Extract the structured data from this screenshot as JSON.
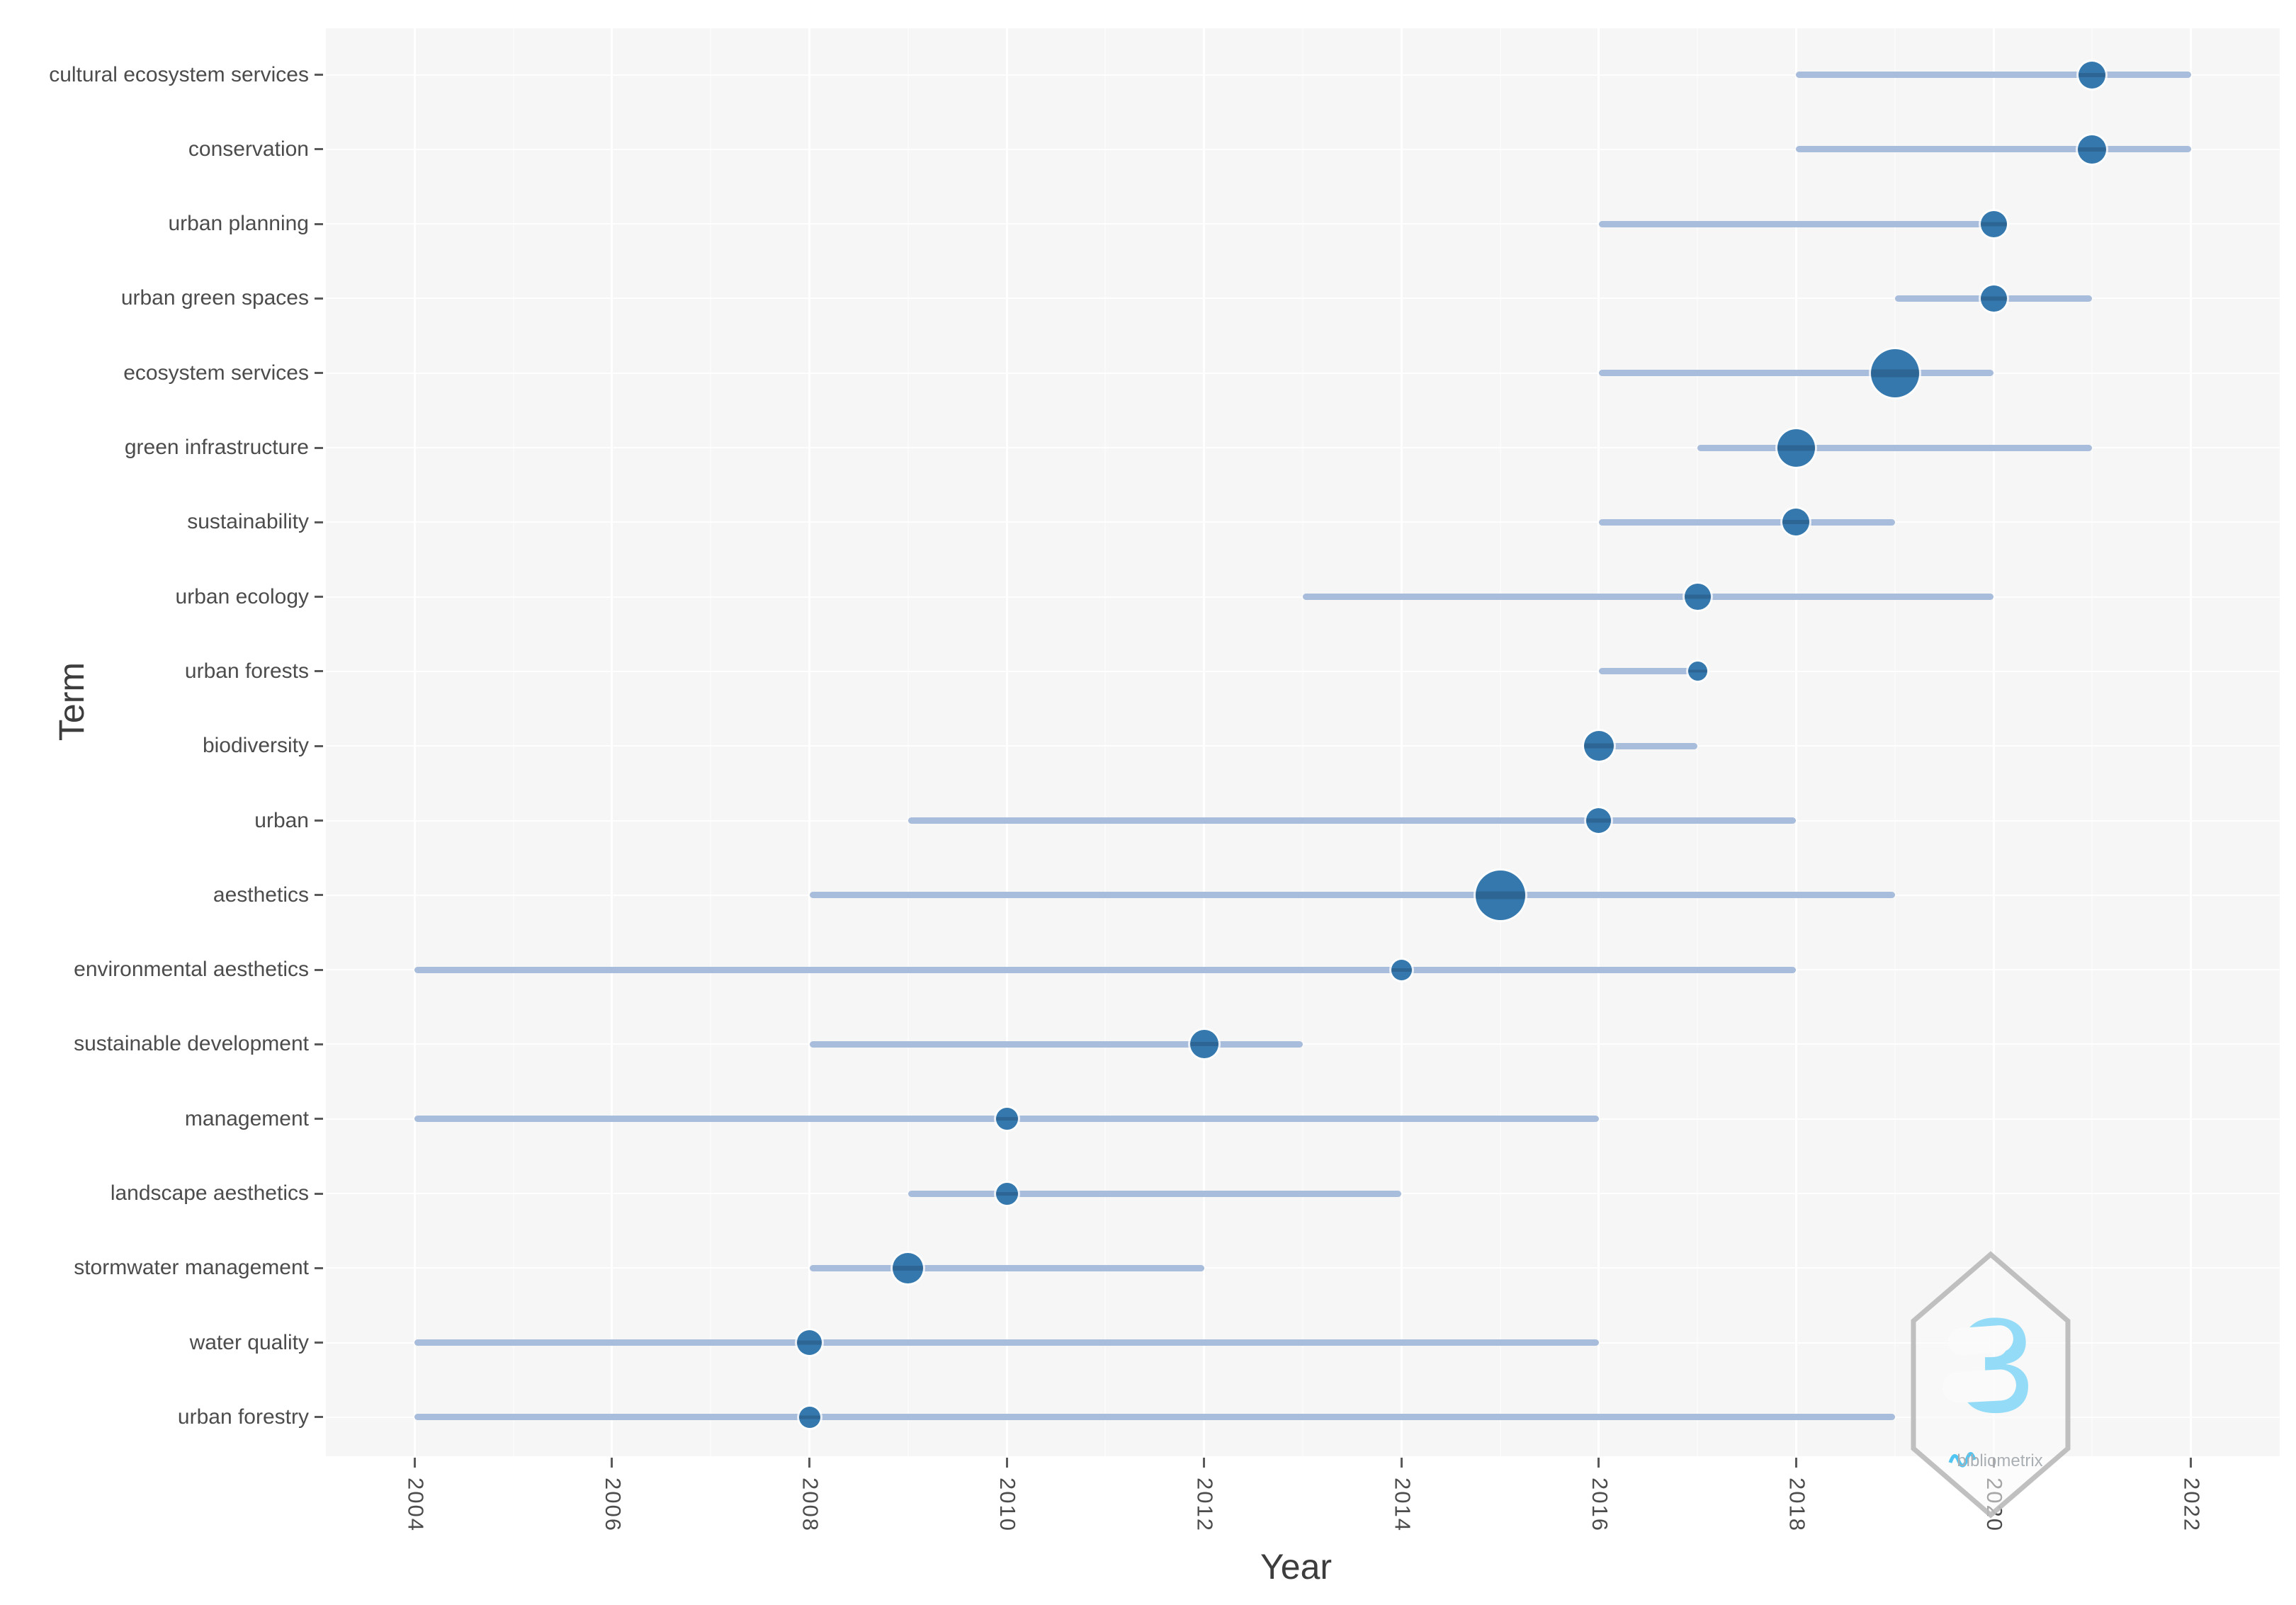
{
  "chart_data": {
    "type": "scatter",
    "subtype": "trend-topics-bubble-timeline",
    "title": "",
    "xlabel": "Year",
    "ylabel": "Term",
    "x_ticks": [
      2004,
      2006,
      2008,
      2010,
      2012,
      2014,
      2016,
      2018,
      2020,
      2022
    ],
    "x_minor_ticks": [
      2005,
      2007,
      2009,
      2011,
      2013,
      2015,
      2017,
      2019,
      2021
    ],
    "xlim": [
      2003.1,
      2022.9
    ],
    "grid": true,
    "legend": "none",
    "marker_note": "horizontal line spans first-to-third quartile years; bubble sits on median year; bubble diameter (px) encodes term frequency",
    "terms": [
      {
        "term": "cultural ecosystem services",
        "year_q1": 2018,
        "year_median": 2021,
        "year_q3": 2022,
        "size": 38
      },
      {
        "term": "conservation",
        "year_q1": 2018,
        "year_median": 2021,
        "year_q3": 2022,
        "size": 40
      },
      {
        "term": "urban planning",
        "year_q1": 2016,
        "year_median": 2020,
        "year_q3": 2020,
        "size": 37
      },
      {
        "term": "urban green spaces",
        "year_q1": 2019,
        "year_median": 2020,
        "year_q3": 2021,
        "size": 37
      },
      {
        "term": "ecosystem services",
        "year_q1": 2016,
        "year_median": 2019,
        "year_q3": 2020,
        "size": 68
      },
      {
        "term": "green infrastructure",
        "year_q1": 2017,
        "year_median": 2018,
        "year_q3": 2021,
        "size": 53
      },
      {
        "term": "sustainability",
        "year_q1": 2016,
        "year_median": 2018,
        "year_q3": 2019,
        "size": 38
      },
      {
        "term": "urban ecology",
        "year_q1": 2013,
        "year_median": 2017,
        "year_q3": 2020,
        "size": 37
      },
      {
        "term": "urban forests",
        "year_q1": 2016,
        "year_median": 2017,
        "year_q3": 2017,
        "size": 27
      },
      {
        "term": "biodiversity",
        "year_q1": 2016,
        "year_median": 2016,
        "year_q3": 2017,
        "size": 42
      },
      {
        "term": "urban",
        "year_q1": 2009,
        "year_median": 2016,
        "year_q3": 2018,
        "size": 35
      },
      {
        "term": "aesthetics",
        "year_q1": 2008,
        "year_median": 2015,
        "year_q3": 2019,
        "size": 70
      },
      {
        "term": "environmental aesthetics",
        "year_q1": 2004,
        "year_median": 2014,
        "year_q3": 2018,
        "size": 29
      },
      {
        "term": "sustainable development",
        "year_q1": 2008,
        "year_median": 2012,
        "year_q3": 2013,
        "size": 40
      },
      {
        "term": "management",
        "year_q1": 2004,
        "year_median": 2010,
        "year_q3": 2016,
        "size": 31
      },
      {
        "term": "landscape aesthetics",
        "year_q1": 2009,
        "year_median": 2010,
        "year_q3": 2014,
        "size": 31
      },
      {
        "term": "stormwater management",
        "year_q1": 2008,
        "year_median": 2009,
        "year_q3": 2012,
        "size": 43
      },
      {
        "term": "water quality",
        "year_q1": 2004,
        "year_median": 2008,
        "year_q3": 2016,
        "size": 35
      },
      {
        "term": "urban forestry",
        "year_q1": 2004,
        "year_median": 2008,
        "year_q3": 2019,
        "size": 30
      }
    ]
  },
  "watermark": {
    "label": "bibliometrix",
    "icon": "bibliometrix-hexagon-logo"
  },
  "colors": {
    "panel_bg": "#f6f6f7",
    "gridline": "#ffffff",
    "interval_line": "#a8bcdc",
    "bubble_fill": "#3478ad",
    "bubble_band": "rgba(20,40,60,0.22)",
    "axis_text": "#4c4c4c",
    "axis_title": "#3d3d3d",
    "tick_mark": "#5a5a5a",
    "logo_gray": "#bdbdbd",
    "logo_blue": "#8edaf7",
    "logo_text": "#a6abb0"
  }
}
